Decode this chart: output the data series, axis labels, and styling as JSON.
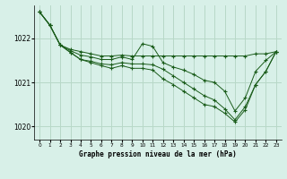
{
  "title": "Graphe pression niveau de la mer (hPa)",
  "background_color": "#d8f0e8",
  "grid_color": "#b8d8c8",
  "line_color": "#1a5c1a",
  "xlim": [
    -0.5,
    23.5
  ],
  "ylim": [
    1019.7,
    1022.75
  ],
  "yticks": [
    1020,
    1021,
    1022
  ],
  "xticks": [
    0,
    1,
    2,
    3,
    4,
    5,
    6,
    7,
    8,
    9,
    10,
    11,
    12,
    13,
    14,
    15,
    16,
    17,
    18,
    19,
    20,
    21,
    22,
    23
  ],
  "lines": [
    [
      1022.6,
      1022.3,
      1021.85,
      1021.75,
      1021.7,
      1021.65,
      1021.6,
      1021.6,
      1021.62,
      1021.6,
      1021.6,
      1021.6,
      1021.6,
      1021.6,
      1021.6,
      1021.6,
      1021.6,
      1021.6,
      1021.6,
      1021.6,
      1021.6,
      1021.65,
      1021.65,
      1021.7
    ],
    [
      1022.6,
      1022.3,
      1021.85,
      1021.72,
      1021.62,
      1021.58,
      1021.52,
      1021.52,
      1021.58,
      1021.52,
      1021.88,
      1021.82,
      1021.45,
      1021.35,
      1021.28,
      1021.18,
      1021.05,
      1021.0,
      1020.8,
      1020.35,
      1020.65,
      1021.25,
      1021.5,
      1021.7
    ],
    [
      1022.6,
      1022.3,
      1021.85,
      1021.68,
      1021.52,
      1021.48,
      1021.42,
      1021.4,
      1021.45,
      1021.42,
      1021.42,
      1021.4,
      1021.3,
      1021.15,
      1021.0,
      1020.85,
      1020.7,
      1020.6,
      1020.4,
      1020.15,
      1020.45,
      1020.95,
      1021.25,
      1021.7
    ],
    [
      1022.6,
      1022.3,
      1021.85,
      1021.68,
      1021.52,
      1021.45,
      1021.38,
      1021.32,
      1021.38,
      1021.32,
      1021.32,
      1021.28,
      1021.08,
      1020.95,
      1020.8,
      1020.65,
      1020.5,
      1020.45,
      1020.3,
      1020.1,
      1020.38,
      1020.95,
      1021.25,
      1021.7
    ]
  ]
}
